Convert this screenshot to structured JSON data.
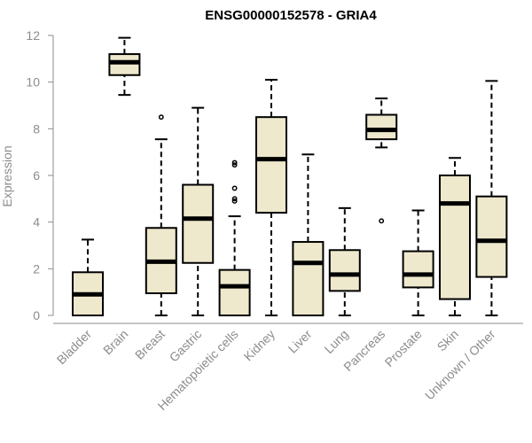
{
  "chart_data": {
    "type": "box",
    "title": "ENSG00000152578 - GRIA4",
    "xlabel": "",
    "ylabel": "Expression",
    "ylim": [
      0,
      12
    ],
    "yticks": [
      0,
      2,
      4,
      6,
      8,
      10,
      12
    ],
    "categories": [
      "Bladder",
      "Brain",
      "Breast",
      "Gastric",
      "Hematopoietic cells",
      "Kidney",
      "Liver",
      "Lung",
      "Pancreas",
      "Prostate",
      "Skin",
      "Unknown / Other"
    ],
    "boxes": [
      {
        "min": 0.0,
        "q1": 0.0,
        "median": 0.9,
        "q3": 1.85,
        "max": 3.25,
        "outliers": []
      },
      {
        "min": 9.45,
        "q1": 10.3,
        "median": 10.85,
        "q3": 11.2,
        "max": 11.9,
        "outliers": []
      },
      {
        "min": 0.0,
        "q1": 0.95,
        "median": 2.3,
        "q3": 3.75,
        "max": 7.55,
        "outliers": [
          8.5
        ]
      },
      {
        "min": 0.0,
        "q1": 2.25,
        "median": 4.15,
        "q3": 5.6,
        "max": 8.9,
        "outliers": []
      },
      {
        "min": 0.0,
        "q1": 0.0,
        "median": 1.25,
        "q3": 1.95,
        "max": 4.25,
        "outliers": [
          4.9,
          5.0,
          5.45,
          6.45,
          6.55
        ]
      },
      {
        "min": 0.0,
        "q1": 4.4,
        "median": 6.7,
        "q3": 8.5,
        "max": 10.1,
        "outliers": []
      },
      {
        "min": 0.0,
        "q1": 0.0,
        "median": 2.25,
        "q3": 3.15,
        "max": 6.9,
        "outliers": []
      },
      {
        "min": 0.0,
        "q1": 1.05,
        "median": 1.75,
        "q3": 2.8,
        "max": 4.6,
        "outliers": []
      },
      {
        "min": 7.2,
        "q1": 7.55,
        "median": 7.95,
        "q3": 8.6,
        "max": 9.3,
        "outliers": [
          4.05
        ]
      },
      {
        "min": 0.0,
        "q1": 1.2,
        "median": 1.75,
        "q3": 2.75,
        "max": 4.5,
        "outliers": []
      },
      {
        "min": 0.0,
        "q1": 0.7,
        "median": 4.8,
        "q3": 6.0,
        "max": 6.75,
        "outliers": []
      },
      {
        "min": 0.0,
        "q1": 1.65,
        "median": 3.2,
        "q3": 5.1,
        "max": 10.05,
        "outliers": []
      }
    ],
    "box_color": "#eee8cd",
    "line_color": "#000000",
    "axis_color": "#8c8c8c",
    "grid": false
  }
}
